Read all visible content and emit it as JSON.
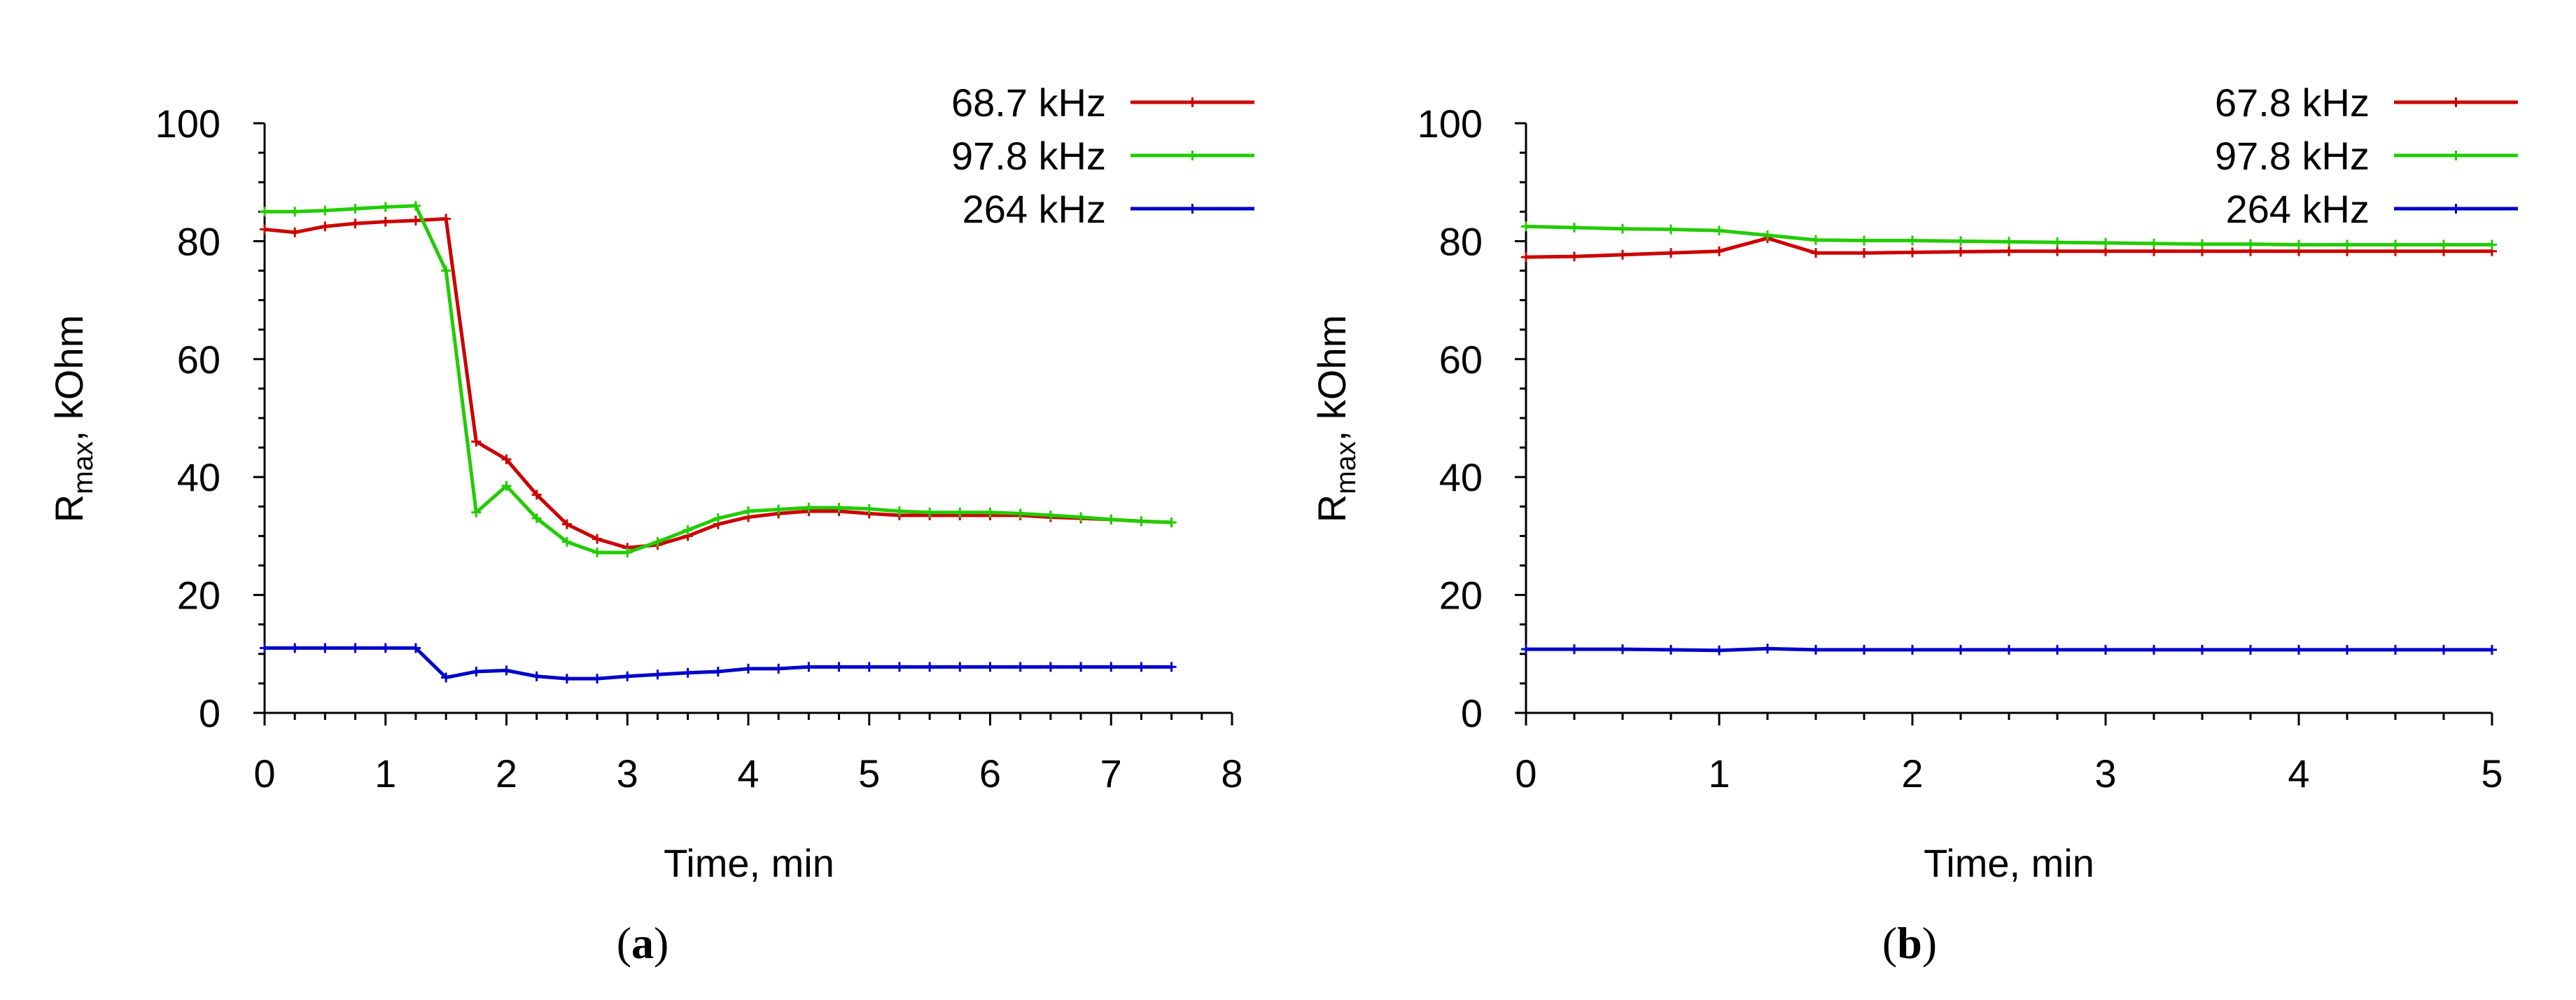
{
  "colors": {
    "red": "#cc0000",
    "green": "#22cc00",
    "blue": "#0000cc"
  },
  "chart_data": [
    {
      "type": "line",
      "panel": "a",
      "caption": {
        "open": "(",
        "letter": "a",
        "close": ")"
      },
      "xlabel": "Time, min",
      "ylabel": {
        "main": "R",
        "sub": "max",
        "rest": ", kOhm"
      },
      "xlim": [
        0,
        8
      ],
      "ylim": [
        0,
        100
      ],
      "xticks": [
        "0",
        "1",
        "2",
        "3",
        "4",
        "5",
        "6",
        "7",
        "8"
      ],
      "yticks": [
        "0",
        "20",
        "40",
        "60",
        "80",
        "100"
      ],
      "xtick_values": [
        0,
        1,
        2,
        3,
        4,
        5,
        6,
        7,
        8
      ],
      "ytick_values": [
        0,
        20,
        40,
        60,
        80,
        100
      ],
      "x": [
        0,
        0.25,
        0.5,
        0.75,
        1.0,
        1.25,
        1.5,
        1.75,
        2.0,
        2.25,
        2.5,
        2.75,
        3.0,
        3.25,
        3.5,
        3.75,
        4.0,
        4.25,
        4.5,
        4.75,
        5.0,
        5.25,
        5.5,
        5.75,
        6.0,
        6.25,
        6.5,
        6.75,
        7.0,
        7.25,
        7.5
      ],
      "legend_position": "top-right",
      "series": [
        {
          "name": "68.7 kHz",
          "color": "#cc0000",
          "values": [
            82,
            81.5,
            82.5,
            83,
            83.3,
            83.5,
            83.8,
            46,
            43,
            37,
            32,
            29.5,
            28,
            28.5,
            30,
            32,
            33.2,
            33.8,
            34.2,
            34.2,
            33.8,
            33.5,
            33.5,
            33.5,
            33.5,
            33.5,
            33.2,
            33,
            32.8,
            32.5,
            32.3
          ]
        },
        {
          "name": "97.8 kHz",
          "color": "#22cc00",
          "values": [
            85,
            85,
            85.2,
            85.5,
            85.8,
            86,
            75,
            34,
            38.5,
            33,
            29,
            27.2,
            27.2,
            29,
            31,
            33,
            34.2,
            34.5,
            34.8,
            34.8,
            34.6,
            34.2,
            34,
            34,
            34,
            33.8,
            33.5,
            33.2,
            32.8,
            32.5,
            32.3
          ]
        },
        {
          "name": "264 kHz",
          "color": "#0000cc",
          "values": [
            11,
            11,
            11,
            11,
            11,
            11,
            6,
            7,
            7.2,
            6.2,
            5.8,
            5.8,
            6.2,
            6.5,
            6.8,
            7,
            7.5,
            7.5,
            7.8,
            7.8,
            7.8,
            7.8,
            7.8,
            7.8,
            7.8,
            7.8,
            7.8,
            7.8,
            7.8,
            7.8,
            7.8
          ]
        }
      ]
    },
    {
      "type": "line",
      "panel": "b",
      "caption": {
        "open": "(",
        "letter": "b",
        "close": ")"
      },
      "xlabel": "Time, min",
      "ylabel": {
        "main": "R",
        "sub": "max",
        "rest": ", kOhm"
      },
      "xlim": [
        0,
        5
      ],
      "ylim": [
        0,
        100
      ],
      "xticks": [
        "0",
        "1",
        "2",
        "3",
        "4",
        "5"
      ],
      "yticks": [
        "0",
        "20",
        "40",
        "60",
        "80",
        "100"
      ],
      "xtick_values": [
        0,
        1,
        2,
        3,
        4,
        5
      ],
      "ytick_values": [
        0,
        20,
        40,
        60,
        80,
        100
      ],
      "x": [
        0,
        0.25,
        0.5,
        0.75,
        1.0,
        1.25,
        1.5,
        1.75,
        2.0,
        2.25,
        2.5,
        2.75,
        3.0,
        3.25,
        3.5,
        3.75,
        4.0,
        4.25,
        4.5,
        4.75,
        5.0
      ],
      "legend_position": "top-right",
      "series": [
        {
          "name": "67.8 kHz",
          "color": "#cc0000",
          "values": [
            77.3,
            77.4,
            77.7,
            78,
            78.3,
            80.5,
            78,
            78,
            78.1,
            78.2,
            78.3,
            78.3,
            78.3,
            78.3,
            78.3,
            78.3,
            78.3,
            78.3,
            78.3,
            78.3,
            78.3
          ]
        },
        {
          "name": "97.8 kHz",
          "color": "#22cc00",
          "values": [
            82.5,
            82.3,
            82.1,
            82,
            81.8,
            81,
            80.2,
            80.1,
            80.1,
            80,
            79.9,
            79.8,
            79.7,
            79.6,
            79.5,
            79.5,
            79.4,
            79.4,
            79.4,
            79.4,
            79.4
          ]
        },
        {
          "name": "264 kHz",
          "color": "#0000cc",
          "values": [
            10.8,
            10.8,
            10.8,
            10.7,
            10.6,
            10.9,
            10.7,
            10.7,
            10.7,
            10.7,
            10.7,
            10.7,
            10.7,
            10.7,
            10.7,
            10.7,
            10.7,
            10.7,
            10.7,
            10.7,
            10.7
          ]
        }
      ]
    }
  ]
}
